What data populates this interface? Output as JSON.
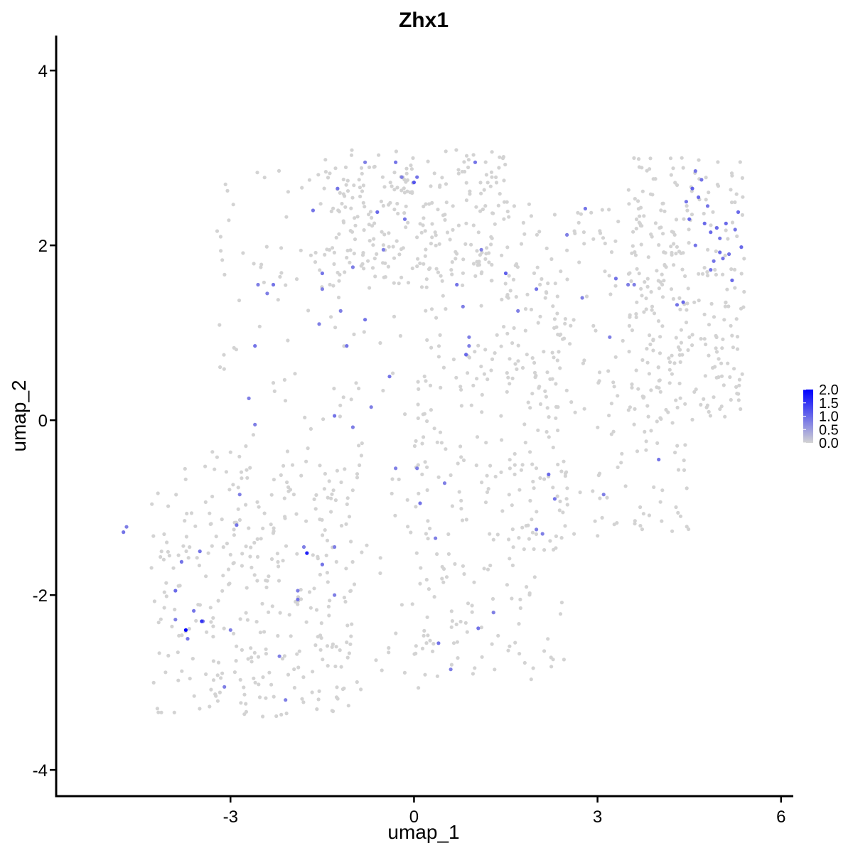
{
  "chart_data": {
    "type": "scatter",
    "title": "Zhx1",
    "xlabel": "umap_1",
    "ylabel": "umap_2",
    "xlim": [
      -5.85,
      6.2
    ],
    "ylim": [
      -4.3,
      4.4
    ],
    "x_ticks": [
      -3,
      0,
      3,
      6
    ],
    "y_ticks": [
      -4,
      -2,
      0,
      2,
      4
    ],
    "x_tick_labels": [
      "-3",
      "0",
      "3",
      "6"
    ],
    "y_tick_labels": [
      "-4",
      "-2",
      "0",
      "2",
      "4"
    ],
    "grid": false,
    "legend": {
      "placement": "right",
      "kind": "colorbar",
      "range": [
        0,
        2
      ],
      "labels": [
        "2.0",
        "1.5",
        "1.0",
        "0.5",
        "0.0"
      ],
      "low_color": "#d3d3d3",
      "high_color": "#0000ff"
    },
    "background_points": {
      "count": 1450,
      "value": 0,
      "color": "#d3d3d3",
      "regions": [
        {
          "x": [
            -3.3,
            0.5
          ],
          "y": [
            -3.2,
            2.9
          ]
        },
        {
          "x": [
            -4.3,
            -1.0
          ],
          "y": [
            -3.4,
            -0.5
          ]
        },
        {
          "x": [
            0.0,
            2.5
          ],
          "y": [
            -3.0,
            1.8
          ]
        },
        {
          "x": [
            1.5,
            4.5
          ],
          "y": [
            -1.5,
            2.5
          ]
        },
        {
          "x": [
            3.5,
            5.4
          ],
          "y": [
            0.0,
            3.0
          ]
        },
        {
          "x": [
            -1.5,
            1.5
          ],
          "y": [
            1.5,
            3.1
          ]
        }
      ]
    },
    "expressing_points": {
      "x": [
        -4.75,
        -4.7,
        -3.7,
        -3.45,
        -3.5,
        -3.9,
        -3.8,
        -3.0,
        -2.9,
        -2.7,
        -2.6,
        -2.4,
        -2.3,
        -2.2,
        -1.9,
        -1.9,
        -1.65,
        -1.55,
        -1.5,
        -1.5,
        -1.3,
        -1.3,
        -1.25,
        -1.2,
        -1.1,
        -1.0,
        -0.8,
        -0.8,
        -0.6,
        -0.5,
        -0.4,
        -0.3,
        -0.3,
        -0.2,
        -0.15,
        0.0,
        0.05,
        0.1,
        0.35,
        0.4,
        0.6,
        0.7,
        0.8,
        0.85,
        0.9,
        1.0,
        1.1,
        1.5,
        1.7,
        2.0,
        2.1,
        2.2,
        2.5,
        2.8,
        3.2,
        3.3,
        3.6,
        4.0,
        4.4,
        4.45,
        4.5,
        4.55,
        4.6,
        4.65,
        4.7,
        4.75,
        4.8,
        4.85,
        4.9,
        4.95,
        5.0,
        5.05,
        5.1,
        5.15,
        5.2,
        5.25,
        5.3,
        5.35,
        -3.9,
        -3.6,
        -3.1,
        -2.85,
        -2.6,
        -2.55,
        -2.1,
        -1.8,
        -1.5,
        -1.3,
        -1.0,
        -0.7,
        0.05,
        0.5,
        0.9,
        1.05,
        1.3,
        2.0,
        2.3,
        2.75,
        3.1,
        3.5,
        4.3,
        4.6,
        4.85,
        5.0,
        -1.75,
        -3.73,
        -3.47
      ],
      "y": [
        -1.28,
        -1.22,
        -2.5,
        -2.3,
        -1.5,
        -1.95,
        -1.62,
        -2.4,
        -1.2,
        0.25,
        0.85,
        1.45,
        1.55,
        -2.7,
        -2.05,
        -1.95,
        2.4,
        1.1,
        1.68,
        1.5,
        0.05,
        -1.45,
        2.65,
        1.25,
        0.85,
        1.75,
        1.15,
        2.95,
        2.38,
        1.95,
        0.5,
        -0.55,
        2.95,
        2.78,
        2.3,
        2.72,
        -0.55,
        -0.95,
        -1.35,
        -2.55,
        -2.85,
        1.55,
        1.3,
        0.75,
        0.95,
        2.95,
        1.95,
        1.68,
        1.25,
        1.5,
        -1.3,
        -0.62,
        2.12,
        2.42,
        0.95,
        1.62,
        1.55,
        -0.45,
        1.35,
        2.5,
        2.3,
        2.65,
        2.85,
        2.55,
        2.75,
        2.25,
        2.45,
        2.15,
        1.82,
        2.2,
        1.92,
        1.85,
        2.25,
        1.9,
        1.6,
        2.18,
        2.38,
        1.98,
        -2.28,
        -2.18,
        -3.05,
        -0.85,
        -0.05,
        1.55,
        -3.2,
        -1.45,
        -1.65,
        -2.0,
        -0.08,
        0.15,
        2.78,
        -0.72,
        0.85,
        -2.38,
        -2.2,
        -1.25,
        -0.9,
        1.4,
        -0.85,
        1.55,
        1.32,
        2.0,
        1.72,
        2.08,
        -1.52,
        -2.4,
        -2.3
      ],
      "values": [
        0.9,
        0.8,
        0.9,
        0.8,
        0.9,
        1.0,
        0.9,
        0.8,
        0.9,
        0.8,
        0.9,
        0.8,
        0.9,
        0.8,
        0.9,
        0.8,
        0.9,
        0.8,
        0.9,
        0.8,
        0.9,
        0.8,
        0.9,
        0.8,
        0.9,
        0.8,
        0.9,
        0.8,
        1.0,
        0.8,
        0.9,
        0.8,
        0.9,
        0.8,
        0.9,
        1.2,
        0.8,
        0.9,
        0.8,
        0.9,
        0.8,
        0.9,
        0.8,
        1.0,
        0.8,
        0.9,
        0.8,
        1.1,
        0.8,
        0.9,
        0.8,
        1.0,
        0.8,
        0.9,
        0.8,
        0.9,
        0.8,
        0.9,
        1.0,
        0.9,
        1.0,
        1.1,
        0.9,
        1.0,
        0.9,
        1.0,
        0.9,
        1.0,
        0.9,
        1.0,
        1.0,
        0.9,
        1.0,
        0.9,
        1.0,
        0.9,
        1.0,
        1.0,
        0.8,
        0.9,
        0.8,
        0.8,
        0.8,
        0.8,
        0.8,
        0.8,
        0.9,
        0.8,
        0.8,
        0.8,
        0.9,
        0.8,
        0.8,
        0.9,
        0.8,
        0.8,
        0.9,
        0.8,
        0.8,
        0.8,
        0.9,
        0.9,
        0.9,
        0.9,
        1.7,
        2.0,
        1.5
      ]
    }
  }
}
